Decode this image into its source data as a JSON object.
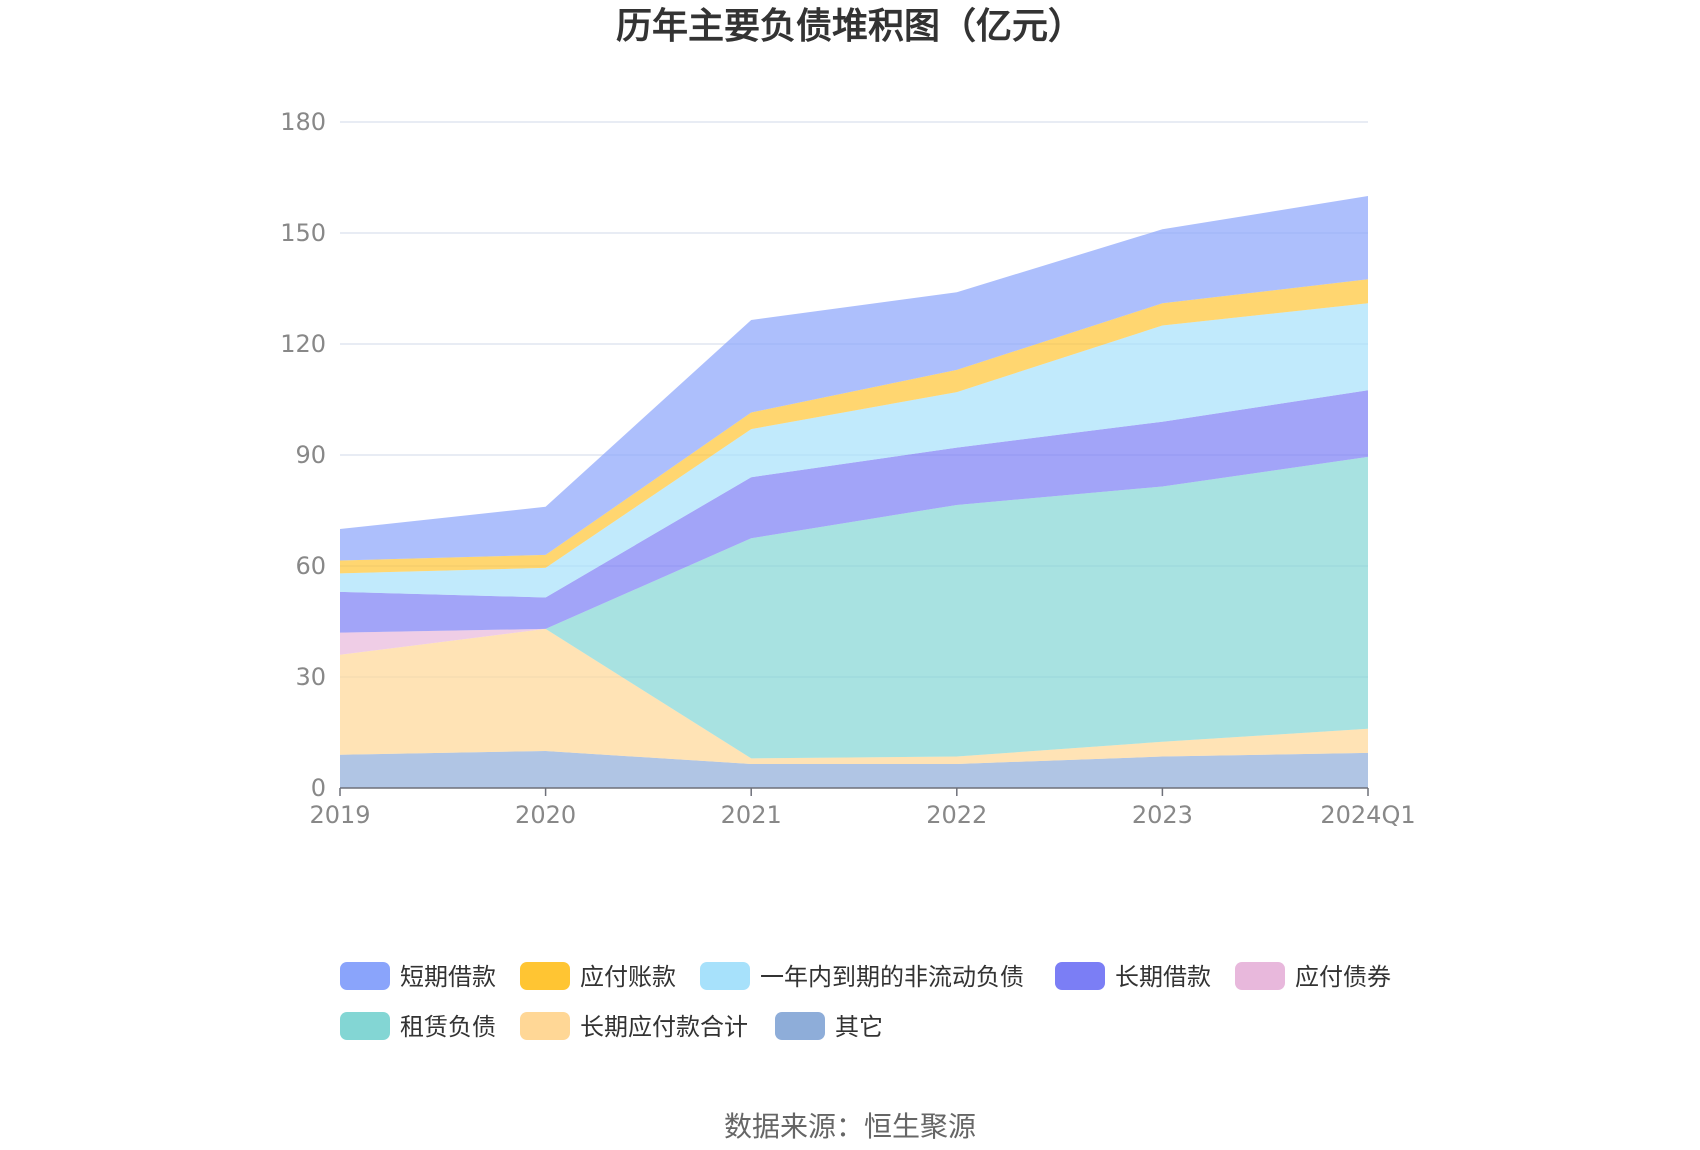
{
  "chart_data": {
    "type": "area",
    "stacked": true,
    "title": "历年主要负债堆积图（亿元）",
    "xlabel": "",
    "ylabel": "",
    "categories": [
      "2019",
      "2020",
      "2021",
      "2022",
      "2023",
      "2024Q1"
    ],
    "ylim": [
      0,
      180
    ],
    "yticks": [
      0,
      30,
      60,
      90,
      120,
      150,
      180
    ],
    "grid": true,
    "legend_position": "bottom",
    "series": [
      {
        "name": "其它",
        "color": "#8eadd9",
        "values": [
          9,
          10,
          6.5,
          6.5,
          8.5,
          9.5
        ]
      },
      {
        "name": "长期应付款合计",
        "color": "#ffd796",
        "values": [
          27,
          33,
          1.5,
          2,
          4,
          6.5
        ]
      },
      {
        "name": "租赁负债",
        "color": "#83d6d4",
        "values": [
          0,
          0,
          59.5,
          68,
          69,
          73.5
        ]
      },
      {
        "name": "应付债券",
        "color": "#e8b8dc",
        "values": [
          6,
          0,
          0,
          0,
          0,
          0
        ]
      },
      {
        "name": "长期借款",
        "color": "#7b7ef5",
        "values": [
          11,
          8.5,
          16.5,
          15.5,
          17.5,
          18
        ]
      },
      {
        "name": "一年内到期的非流动负债",
        "color": "#a7e1fb",
        "values": [
          5,
          8,
          13,
          15,
          26,
          23.5
        ]
      },
      {
        "name": "应付账款",
        "color": "#ffc533",
        "values": [
          3.5,
          3.5,
          4.5,
          6,
          6,
          6.5
        ]
      },
      {
        "name": "短期借款",
        "color": "#8aa4fb",
        "values": [
          8.5,
          13,
          25,
          21,
          20,
          22.5
        ]
      }
    ],
    "legend_order": [
      "短期借款",
      "应付账款",
      "一年内到期的非流动负债",
      "长期借款",
      "应付债券",
      "租赁负债",
      "长期应付款合计",
      "其它"
    ]
  },
  "source": "数据来源：恒生聚源"
}
